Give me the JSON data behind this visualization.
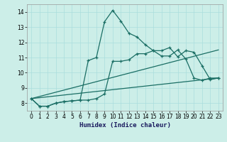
{
  "title": "",
  "xlabel": "Humidex (Indice chaleur)",
  "bg_color": "#cceee8",
  "line_color": "#1a6e64",
  "xlim": [
    -0.5,
    23.5
  ],
  "ylim": [
    7.5,
    14.5
  ],
  "xticks": [
    0,
    1,
    2,
    3,
    4,
    5,
    6,
    7,
    8,
    9,
    10,
    11,
    12,
    13,
    14,
    15,
    16,
    17,
    18,
    19,
    20,
    21,
    22,
    23
  ],
  "yticks": [
    8,
    9,
    10,
    11,
    12,
    13,
    14
  ],
  "series": [
    {
      "x": [
        0,
        1,
        2,
        3,
        4,
        5,
        6,
        7,
        8,
        9,
        10,
        11,
        12,
        13,
        14,
        15,
        16,
        17,
        18,
        19,
        20,
        21,
        22,
        23
      ],
      "y": [
        8.3,
        7.8,
        7.8,
        8.0,
        8.1,
        8.15,
        8.2,
        10.8,
        11.0,
        13.35,
        14.1,
        13.4,
        12.6,
        12.35,
        11.85,
        11.45,
        11.1,
        11.1,
        11.5,
        10.9,
        9.65,
        9.5,
        9.65,
        9.65
      ],
      "marker": true
    },
    {
      "x": [
        0,
        1,
        2,
        3,
        4,
        5,
        6,
        7,
        8,
        9,
        10,
        11,
        12,
        13,
        14,
        15,
        16,
        17,
        18,
        19,
        20,
        21,
        22,
        23
      ],
      "y": [
        8.3,
        7.8,
        7.8,
        8.0,
        8.1,
        8.15,
        8.2,
        8.2,
        8.3,
        8.6,
        10.75,
        10.75,
        10.85,
        11.25,
        11.25,
        11.45,
        11.45,
        11.65,
        11.05,
        11.45,
        11.35,
        10.45,
        9.55,
        9.65
      ],
      "marker": true
    },
    {
      "x": [
        0,
        23
      ],
      "y": [
        8.3,
        9.65
      ],
      "marker": false
    },
    {
      "x": [
        0,
        23
      ],
      "y": [
        8.3,
        11.5
      ],
      "marker": false
    }
  ],
  "grid_color": "#aadddd",
  "tick_fontsize": 5.5,
  "xlabel_fontsize": 6.5,
  "xlabel_color": "#1a1a5e",
  "xlabel_family": "monospace",
  "linewidth": 0.9,
  "marker_size": 3,
  "marker_style": "+"
}
